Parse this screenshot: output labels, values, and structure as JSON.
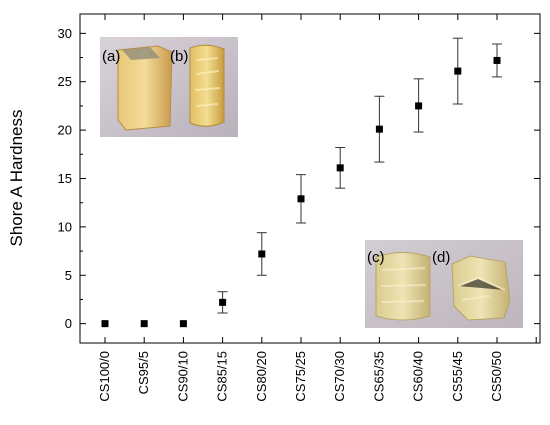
{
  "chart_data": {
    "type": "scatter",
    "title": "",
    "xlabel": "",
    "ylabel": "Shore A Hardness",
    "ylim": [
      -2,
      32
    ],
    "yticks": [
      0,
      5,
      10,
      15,
      20,
      25,
      30
    ],
    "grid": false,
    "error_bars": true,
    "categories": [
      "CS100/0",
      "CS95/5",
      "CS90/10",
      "CS85/15",
      "CS80/20",
      "CS75/25",
      "CS70/30",
      "CS65/35",
      "CS60/40",
      "CS55/45",
      "CS50/50"
    ],
    "values": [
      0,
      0,
      0,
      2.2,
      7.2,
      12.9,
      16.1,
      20.1,
      22.5,
      26.1,
      27.2
    ],
    "error_low": [
      0,
      0,
      0,
      1.1,
      5.0,
      10.4,
      14.0,
      16.7,
      19.8,
      22.7,
      25.5
    ],
    "error_high": [
      0,
      0,
      0,
      3.3,
      9.4,
      15.4,
      18.2,
      23.5,
      25.3,
      29.5,
      28.9
    ],
    "marker_color": "#000000",
    "insets": [
      {
        "position": "top-left",
        "labels": [
          "(a)",
          "(b)"
        ],
        "description": "two yellow cured sample cylinders"
      },
      {
        "position": "bottom-right",
        "labels": [
          "(c)",
          "(d)"
        ],
        "description": "two pale yellow foamed sample cylinders"
      }
    ]
  }
}
